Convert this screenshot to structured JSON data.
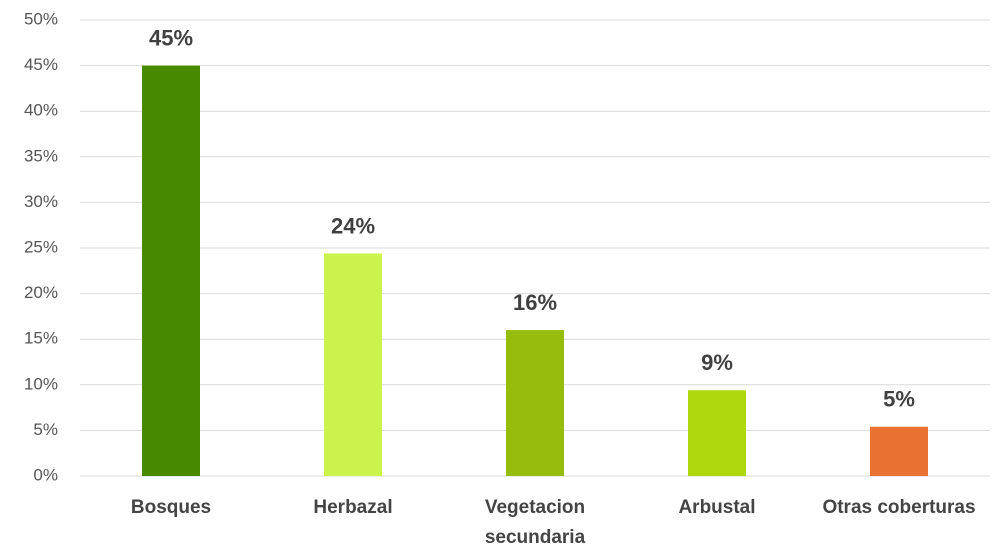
{
  "chart_data": {
    "type": "bar",
    "categories": [
      "Bosques",
      "Herbazal",
      "Vegetacion secundaria",
      "Arbustal",
      "Otras coberturas"
    ],
    "values": [
      45,
      24.4,
      16,
      9.4,
      5.4
    ],
    "value_labels": [
      "45%",
      "24%",
      "16%",
      "9%",
      "5%"
    ],
    "colors": [
      "#478a00",
      "#ccf24c",
      "#96bd0d",
      "#acd80c",
      "#e97132"
    ],
    "ylim": [
      0,
      50
    ],
    "yticks": [
      {
        "value": 0,
        "label": "0%"
      },
      {
        "value": 5,
        "label": "5%"
      },
      {
        "value": 10,
        "label": "10%"
      },
      {
        "value": 15,
        "label": "15%"
      },
      {
        "value": 20,
        "label": "20%"
      },
      {
        "value": 25,
        "label": "25%"
      },
      {
        "value": 30,
        "label": "30%"
      },
      {
        "value": 35,
        "label": "35%"
      },
      {
        "value": 40,
        "label": "40%"
      },
      {
        "value": 45,
        "label": "45%"
      },
      {
        "value": 50,
        "label": "50%"
      }
    ],
    "grid": true
  }
}
